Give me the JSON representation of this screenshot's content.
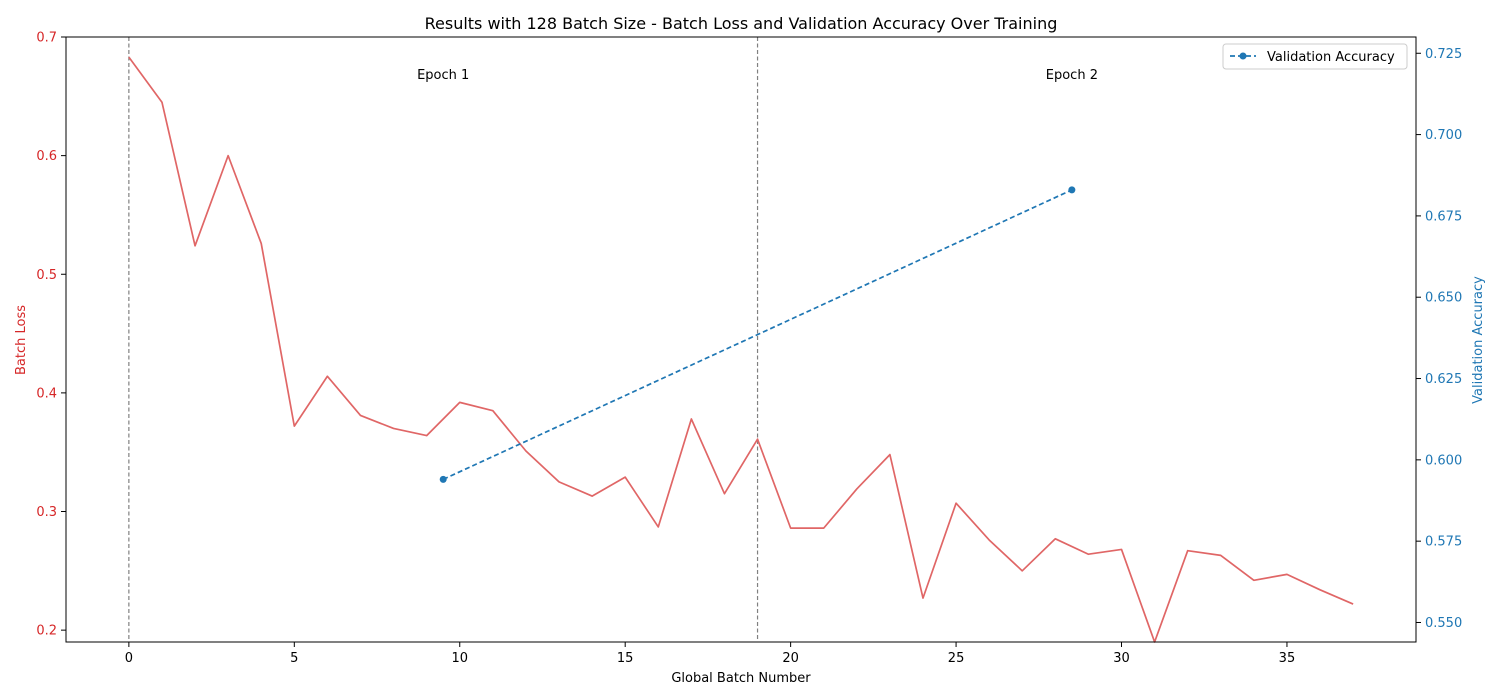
{
  "chart_data": {
    "type": "line",
    "title": "Results with 128 Batch Size - Batch Loss and Validation Accuracy Over Training",
    "xlabel": "Global Batch Number",
    "ylabel_left": "Batch Loss",
    "ylabel_right": "Validation Accuracy",
    "xlim": [
      -1.9,
      38.9
    ],
    "ylim_left": [
      0.19,
      0.7
    ],
    "ylim_right": [
      0.544,
      0.73
    ],
    "x_ticks": [
      0,
      5,
      10,
      15,
      20,
      25,
      30,
      35
    ],
    "y_left_ticks": [
      0.2,
      0.3,
      0.4,
      0.5,
      0.6,
      0.7
    ],
    "y_right_ticks": [
      0.55,
      0.575,
      0.6,
      0.625,
      0.65,
      0.675,
      0.7,
      0.725
    ],
    "grid": false,
    "legend_position": "upper right",
    "colors": {
      "loss": "#e06666",
      "accuracy": "#1f77b4",
      "left_axis": "#d62728",
      "right_axis": "#1f77b4",
      "epoch_line": "#808080"
    },
    "series": [
      {
        "axis": "left",
        "style": "solid",
        "x": [
          0,
          1,
          2,
          3,
          4,
          5,
          6,
          7,
          8,
          9,
          10,
          11,
          12,
          13,
          14,
          15,
          16,
          17,
          18,
          19,
          20,
          21,
          22,
          23,
          24,
          25,
          26,
          27,
          28,
          29,
          30,
          31,
          32,
          33,
          34,
          35,
          36,
          37
        ],
        "values": [
          0.683,
          0.645,
          0.524,
          0.6,
          0.526,
          0.372,
          0.414,
          0.381,
          0.37,
          0.364,
          0.392,
          0.385,
          0.351,
          0.325,
          0.313,
          0.329,
          0.287,
          0.378,
          0.315,
          0.361,
          0.286,
          0.286,
          0.319,
          0.348,
          0.227,
          0.307,
          0.276,
          0.25,
          0.277,
          0.264,
          0.268,
          0.19,
          0.267,
          0.263,
          0.242,
          0.247,
          0.234,
          0.222
        ]
      },
      {
        "name": "Validation Accuracy",
        "axis": "right",
        "style": "dashed",
        "marker": "circle",
        "x": [
          9.5,
          28.5
        ],
        "values": [
          0.594,
          0.683
        ]
      }
    ],
    "epoch_boundaries": [
      0,
      19
    ],
    "annotations": [
      {
        "text": "Epoch 1",
        "x": 9.5
      },
      {
        "text": "Epoch 2",
        "x": 28.5
      }
    ],
    "legend": [
      {
        "label": "Validation Accuracy"
      }
    ]
  }
}
